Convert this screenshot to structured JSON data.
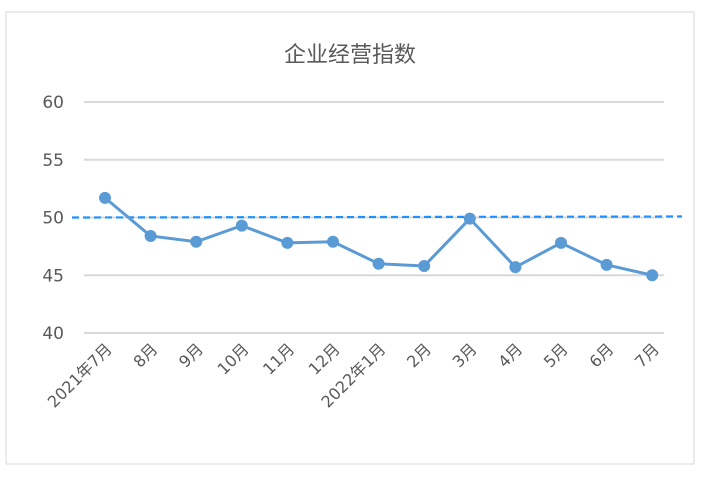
{
  "chart_data": {
    "type": "line",
    "title": "企业经营指数",
    "categories": [
      "2021年7月",
      "8月",
      "9月",
      "10月",
      "11月",
      "12月",
      "2022年1月",
      "2月",
      "3月",
      "4月",
      "5月",
      "6月",
      "7月"
    ],
    "series": [
      {
        "values": [
          51.7,
          48.4,
          47.9,
          49.3,
          47.8,
          47.9,
          46.0,
          45.8,
          49.9,
          45.7,
          47.8,
          45.9,
          45.0
        ],
        "color": "#5b9bd5"
      }
    ],
    "reference_line": {
      "value": 50,
      "style": "dashed",
      "color": "#1e90ff"
    },
    "yticks": [
      40,
      45,
      50,
      55,
      60
    ],
    "ylim": [
      40,
      60
    ],
    "grid": true,
    "xlabel": "",
    "ylabel": ""
  }
}
